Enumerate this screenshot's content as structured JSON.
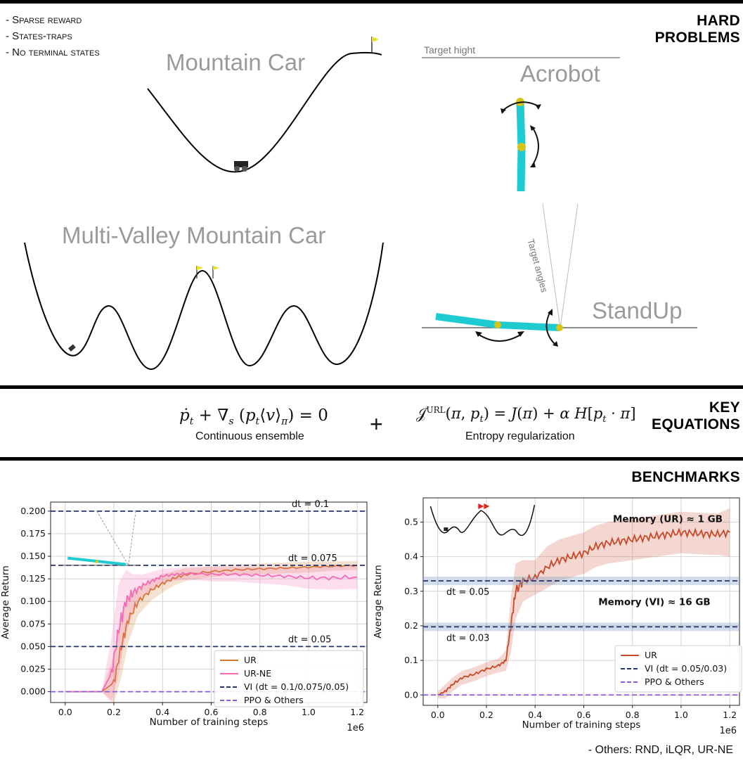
{
  "hard_problems": {
    "title_line1": "HARD",
    "title_line2": "PROBLEMS",
    "bullets": [
      "- Sparse reward",
      "- States-traps",
      "- No terminal states"
    ],
    "mountain_car_title": "Mountain Car",
    "acrobot_title": "Acrobot",
    "acrobot_target_label": "Target hight",
    "multi_valley_title": "Multi-Valley Mountain Car",
    "standup_title": "StandUp",
    "standup_target_label": "Target angles",
    "colors": {
      "link": "#1ecbd1",
      "joint": "#d6c41a",
      "flag": "#e6e21b",
      "title_gray": "#9a9a9a"
    }
  },
  "key_equations": {
    "title_line1": "KEY",
    "title_line2": "EQUATIONS",
    "eq1_caption": "Continuous ensemble",
    "eq2_caption": "Entropy regularization",
    "plus": "+"
  },
  "benchmarks": {
    "title": "BENCHMARKS",
    "footnote": "- Others: RND, iLQR, UR-NE"
  },
  "chart_data": [
    {
      "type": "line",
      "xlabel": "Number of training steps",
      "ylabel": "Average Return",
      "x_multiplier": "1e6",
      "xlim": [
        -0.06,
        1.24
      ],
      "ylim": [
        -0.012,
        0.21
      ],
      "xticks": [
        "0.0",
        "0.2",
        "0.4",
        "0.6",
        "0.8",
        "1.0",
        "1.2"
      ],
      "xtick_values": [
        0,
        0.2,
        0.4,
        0.6,
        0.8,
        1.0,
        1.2
      ],
      "yticks": [
        "0.000",
        "0.025",
        "0.050",
        "0.075",
        "0.100",
        "0.125",
        "0.150",
        "0.175",
        "0.200"
      ],
      "ytick_values": [
        0,
        0.025,
        0.05,
        0.075,
        0.1,
        0.125,
        0.15,
        0.175,
        0.2
      ],
      "grid": true,
      "legend_position": "lower-right",
      "inset_icon": "standup-icon",
      "series": [
        {
          "name": "UR",
          "color": "#d0782a",
          "x": [
            0,
            0.15,
            0.2,
            0.23,
            0.26,
            0.3,
            0.35,
            0.4,
            0.45,
            0.5,
            0.6,
            0.7,
            0.8,
            0.9,
            1.0,
            1.1,
            1.2
          ],
          "y": [
            0,
            0,
            0.01,
            0.05,
            0.08,
            0.1,
            0.112,
            0.12,
            0.126,
            0.13,
            0.133,
            0.135,
            0.136,
            0.137,
            0.138,
            0.139,
            0.14
          ],
          "band": [
            0,
            0,
            0.03,
            0.035,
            0.025,
            0.015,
            0.012,
            0.01,
            0.008,
            0.007,
            0.006,
            0.006,
            0.006,
            0.006,
            0.006,
            0.005,
            0.005
          ]
        },
        {
          "name": "UR-NE",
          "color": "#f46ab8",
          "x": [
            0,
            0.15,
            0.19,
            0.22,
            0.25,
            0.28,
            0.32,
            0.36,
            0.4,
            0.45,
            0.5,
            0.6,
            0.7,
            0.8,
            0.9,
            1.0,
            1.1,
            1.2
          ],
          "y": [
            0,
            0,
            0.02,
            0.07,
            0.1,
            0.11,
            0.118,
            0.123,
            0.128,
            0.13,
            0.131,
            0.13,
            0.13,
            0.129,
            0.128,
            0.126,
            0.126,
            0.127
          ],
          "band": [
            0,
            0,
            0.04,
            0.05,
            0.035,
            0.02,
            0.012,
            0.01,
            0.008,
            0.007,
            0.007,
            0.008,
            0.008,
            0.009,
            0.01,
            0.012,
            0.013,
            0.013
          ]
        },
        {
          "name": "VI (dt = 0.1/0.075/0.05)",
          "color": "#26336f",
          "dash": true,
          "hlines": [
            0.2,
            0.14,
            0.05
          ],
          "hline_labels": [
            "dt = 0.1",
            "dt = 0.075",
            "dt = 0.05"
          ]
        },
        {
          "name": "PPO & Others",
          "color": "#8a5bd6",
          "dash": true,
          "hlines": [
            0
          ]
        }
      ]
    },
    {
      "type": "line",
      "xlabel": "Number of training steps",
      "ylabel": "Average Return",
      "x_multiplier": "1e6",
      "xlim": [
        -0.06,
        1.24
      ],
      "ylim": [
        -0.03,
        0.57
      ],
      "xticks": [
        "0.0",
        "0.2",
        "0.4",
        "0.6",
        "0.8",
        "1.0",
        "1.2"
      ],
      "xtick_values": [
        0,
        0.2,
        0.4,
        0.6,
        0.8,
        1.0,
        1.2
      ],
      "yticks": [
        "0.0",
        "0.1",
        "0.2",
        "0.3",
        "0.4",
        "0.5"
      ],
      "ytick_values": [
        0,
        0.1,
        0.2,
        0.3,
        0.4,
        0.5
      ],
      "grid": true,
      "legend_position": "lower-right",
      "inset_icon": "multi-valley-icon",
      "annotations": [
        "Memory (UR) ≈ 1 GB",
        "Memory (VI) ≈ 16 GB"
      ],
      "series": [
        {
          "name": "UR",
          "color": "#c8492a",
          "x": [
            0,
            0.03,
            0.06,
            0.1,
            0.15,
            0.2,
            0.25,
            0.28,
            0.3,
            0.32,
            0.35,
            0.4,
            0.45,
            0.5,
            0.55,
            0.6,
            0.65,
            0.7,
            0.75,
            0.8,
            0.85,
            0.9,
            0.95,
            1.0,
            1.05,
            1.1,
            1.15,
            1.2
          ],
          "y": [
            0,
            0.01,
            0.03,
            0.05,
            0.06,
            0.075,
            0.085,
            0.1,
            0.2,
            0.3,
            0.33,
            0.34,
            0.37,
            0.39,
            0.4,
            0.41,
            0.43,
            0.44,
            0.445,
            0.45,
            0.455,
            0.46,
            0.465,
            0.47,
            0.468,
            0.466,
            0.465,
            0.47
          ],
          "band": [
            0.01,
            0.02,
            0.02,
            0.02,
            0.02,
            0.02,
            0.02,
            0.03,
            0.08,
            0.08,
            0.06,
            0.05,
            0.06,
            0.06,
            0.06,
            0.06,
            0.06,
            0.06,
            0.06,
            0.06,
            0.06,
            0.06,
            0.06,
            0.06,
            0.06,
            0.06,
            0.06,
            0.07
          ]
        },
        {
          "name": "VI (dt = 0.05/0.03)",
          "color": "#26336f",
          "dash": true,
          "hlines": [
            0.33,
            0.197
          ],
          "hline_labels": [
            "dt = 0.05",
            "dt = 0.03"
          ],
          "hline_band": 0.012
        },
        {
          "name": "PPO & Others",
          "color": "#8a5bd6",
          "dash": true,
          "hlines": [
            0
          ]
        }
      ]
    }
  ]
}
